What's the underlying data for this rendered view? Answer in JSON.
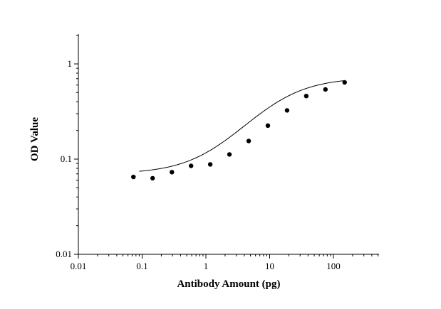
{
  "chart_data": {
    "type": "scatter",
    "title": "",
    "xlabel": "Antibody Amount (pg)",
    "ylabel": "OD Value",
    "x_scale": "log",
    "y_scale": "log",
    "xlim": [
      0.01,
      500
    ],
    "ylim": [
      0.01,
      2
    ],
    "x_ticks": [
      0.01,
      0.1,
      1,
      10,
      100
    ],
    "x_tick_labels": [
      "0.01",
      "0.1",
      "1",
      "10",
      "100"
    ],
    "y_ticks": [
      0.01,
      0.1,
      1
    ],
    "y_tick_labels": [
      "0.01",
      "0.1",
      "1"
    ],
    "grid": false,
    "series": [
      {
        "type": "scatter",
        "x": [
          0.073,
          0.146,
          0.293,
          0.586,
          1.17,
          2.34,
          4.69,
          9.38,
          18.75,
          37.5,
          75,
          150
        ],
        "y": [
          0.065,
          0.063,
          0.073,
          0.085,
          0.088,
          0.112,
          0.155,
          0.225,
          0.325,
          0.46,
          0.54,
          0.64
        ]
      },
      {
        "type": "line",
        "fit": "4PL",
        "params": {
          "bottom": 0.07,
          "top": 0.72,
          "ec50": 13,
          "hill": 1.0
        },
        "x_range": [
          0.09,
          150
        ]
      }
    ]
  }
}
